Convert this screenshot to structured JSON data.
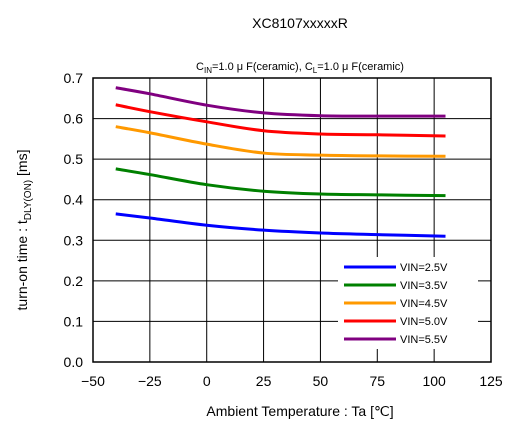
{
  "chart_data": {
    "type": "line",
    "title": "XC8107xxxxxR",
    "subtitle": {
      "cin_main": "C",
      "cin_sub": "IN",
      "cin_rest": "=1.0 μ F(ceramic), ",
      "cl_main": "C",
      "cl_sub": "L",
      "cl_rest": "=1.0 μ F(ceramic)"
    },
    "xlabel": "Ambient Temperature : Ta [℃]",
    "ylabel": {
      "main": "turn-on time : t",
      "sub": "DLY(ON)",
      "rest": " [ms]"
    },
    "xlim": [
      -50,
      125
    ],
    "ylim": [
      0,
      0.7
    ],
    "xticks": [
      -50,
      -25,
      0,
      25,
      50,
      75,
      100,
      125
    ],
    "xtick_labels": [
      "−50",
      "−25",
      "0",
      "25",
      "50",
      "75",
      "100",
      "125"
    ],
    "yticks": [
      0,
      0.1,
      0.2,
      0.3,
      0.4,
      0.5,
      0.6,
      0.7
    ],
    "ytick_labels": [
      "0.0",
      "0.1",
      "0.2",
      "0.3",
      "0.4",
      "0.5",
      "0.6",
      "0.7"
    ],
    "grid": true,
    "legend_position": "bottom-right",
    "x": [
      -40,
      -25,
      0,
      25,
      50,
      75,
      105
    ],
    "series": [
      {
        "name": "VIN=2.5V",
        "color": "#0000ff",
        "values": [
          0.365,
          0.355,
          0.337,
          0.325,
          0.318,
          0.314,
          0.31
        ]
      },
      {
        "name": "VIN=3.5V",
        "color": "#008000",
        "values": [
          0.476,
          0.462,
          0.437,
          0.421,
          0.414,
          0.412,
          0.41
        ]
      },
      {
        "name": "VIN=4.5V",
        "color": "#ff9900",
        "values": [
          0.58,
          0.565,
          0.537,
          0.515,
          0.51,
          0.508,
          0.507
        ]
      },
      {
        "name": "VIN=5.0V",
        "color": "#ff0000",
        "values": [
          0.634,
          0.617,
          0.592,
          0.57,
          0.562,
          0.56,
          0.557
        ]
      },
      {
        "name": "VIN=5.5V",
        "color": "#800080",
        "values": [
          0.676,
          0.661,
          0.633,
          0.614,
          0.607,
          0.606,
          0.606
        ]
      }
    ]
  }
}
